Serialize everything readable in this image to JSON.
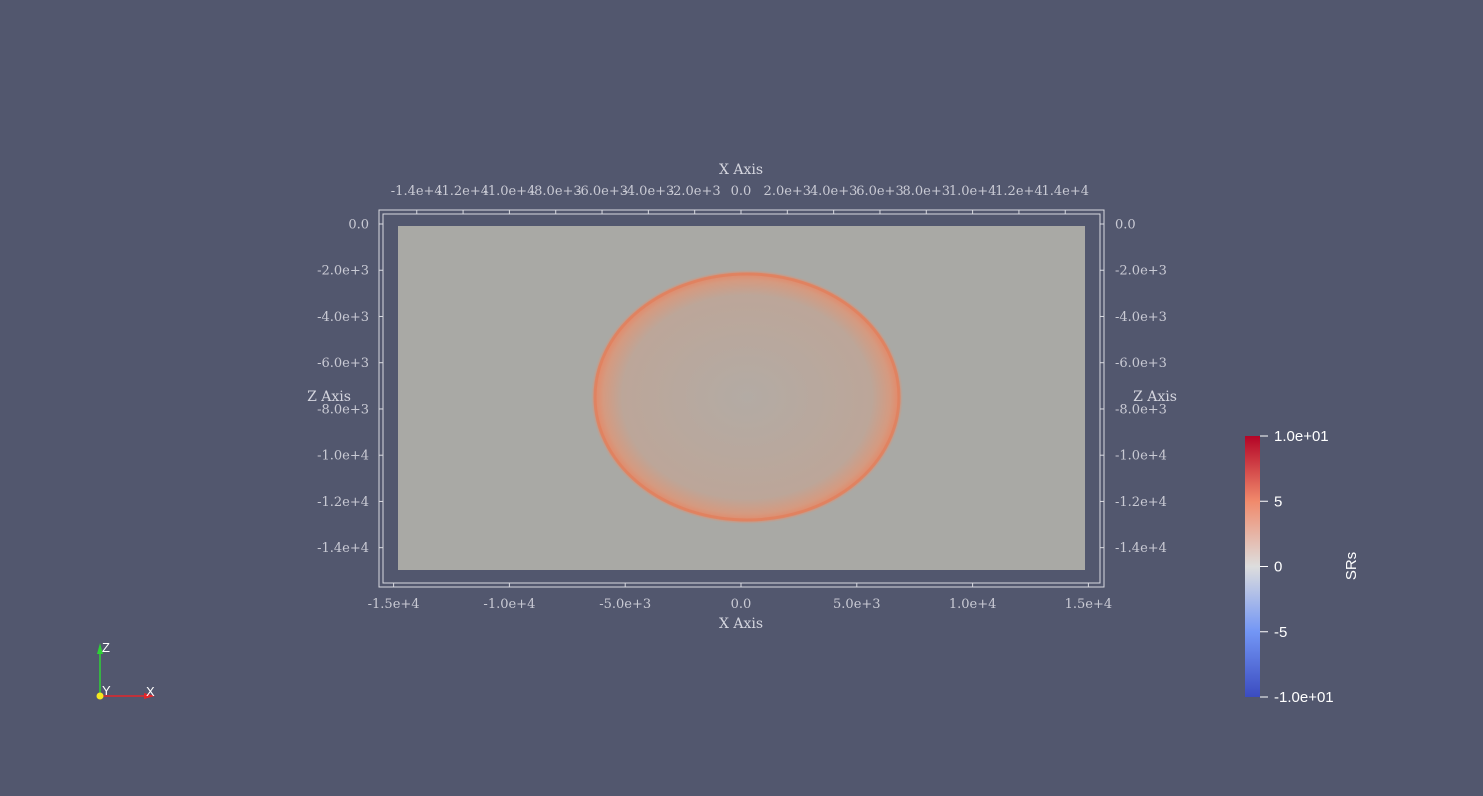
{
  "scene": {
    "background": "#52576e",
    "slice_color": "#a9a9a5",
    "ring_color": "#e07f5c"
  },
  "axes": {
    "x_title_top": "X Axis",
    "x_title_bottom": "X Axis",
    "z_title_left": "Z Axis",
    "z_title_right": "Z Axis",
    "x_ticks_top": [
      {
        "value": -14000,
        "label": "-1.4e+4"
      },
      {
        "value": -12000,
        "label": "-1.2e+4"
      },
      {
        "value": -10000,
        "label": "-1.0e+4"
      },
      {
        "value": -8000,
        "label": "-8.0e+3"
      },
      {
        "value": -6000,
        "label": "-6.0e+3"
      },
      {
        "value": -4000,
        "label": "-4.0e+3"
      },
      {
        "value": -2000,
        "label": "-2.0e+3"
      },
      {
        "value": 0,
        "label": "0.0"
      },
      {
        "value": 2000,
        "label": "2.0e+3"
      },
      {
        "value": 4000,
        "label": "4.0e+3"
      },
      {
        "value": 6000,
        "label": "6.0e+3"
      },
      {
        "value": 8000,
        "label": "8.0e+3"
      },
      {
        "value": 10000,
        "label": "1.0e+4"
      },
      {
        "value": 12000,
        "label": "1.2e+4"
      },
      {
        "value": 14000,
        "label": "1.4e+4"
      }
    ],
    "x_ticks_bottom": [
      {
        "value": -15000,
        "label": "-1.5e+4"
      },
      {
        "value": -10000,
        "label": "-1.0e+4"
      },
      {
        "value": -5000,
        "label": "-5.0e+3"
      },
      {
        "value": 0,
        "label": "0.0"
      },
      {
        "value": 5000,
        "label": "5.0e+3"
      },
      {
        "value": 10000,
        "label": "1.0e+4"
      },
      {
        "value": 15000,
        "label": "1.5e+4"
      }
    ],
    "z_ticks": [
      {
        "value": 0,
        "label": "0.0"
      },
      {
        "value": -2000,
        "label": "-2.0e+3"
      },
      {
        "value": -4000,
        "label": "-4.0e+3"
      },
      {
        "value": -6000,
        "label": "-6.0e+3"
      },
      {
        "value": -8000,
        "label": "-8.0e+3"
      },
      {
        "value": -10000,
        "label": "-1.0e+4"
      },
      {
        "value": -12000,
        "label": "-1.2e+4"
      },
      {
        "value": -14000,
        "label": "-1.4e+4"
      }
    ]
  },
  "colorbar": {
    "title": "SRs",
    "range": [
      -10,
      10
    ],
    "ticks": [
      {
        "value": 10,
        "label": "1.0e+01"
      },
      {
        "value": 5,
        "label": "5"
      },
      {
        "value": 0,
        "label": "0"
      },
      {
        "value": -5,
        "label": "-5"
      },
      {
        "value": -10,
        "label": "-1.0e+01"
      }
    ],
    "colors": [
      "#b40426",
      "#f08a6c",
      "#dddddd",
      "#7396f5",
      "#3b4cc0"
    ]
  },
  "orientation": {
    "z_label": "Z",
    "y_label": "Y",
    "x_label": "X",
    "x_color": "#e3262a",
    "y_color": "#f5e81f",
    "z_color": "#2ed236"
  }
}
